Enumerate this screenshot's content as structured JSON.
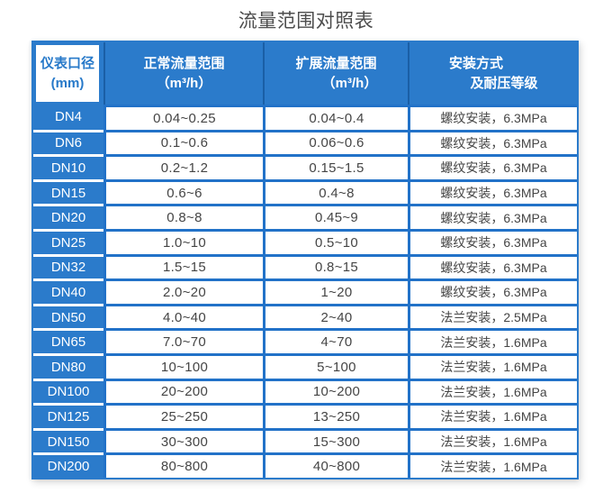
{
  "page_title": "流量范围对照表",
  "colors": {
    "primary_blue": "#2b7bcb",
    "grid_line_blue": "#2272c8",
    "header_divider_blue": "#1a5fa6",
    "header_cell1_bg": "#ffffff",
    "header_cell1_text": "#2779c9",
    "data_text": "#454545",
    "title_text": "#4d4d4d"
  },
  "headers": [
    {
      "line1": "仪表口径",
      "line2": "(mm)"
    },
    {
      "line1": "正常流量范围",
      "line2": "（m³/h）"
    },
    {
      "line1": "扩展流量范围",
      "line2": "（m³/h）"
    },
    {
      "line1": "安装方式",
      "line2": "及耐压等级"
    }
  ],
  "chart_data": {
    "type": "table",
    "title": "流量范围对照表",
    "columns": [
      "仪表口径 (mm)",
      "正常流量范围（m³/h）",
      "扩展流量范围（m³/h）",
      "安装方式及耐压等级"
    ],
    "rows": [
      [
        "DN4",
        "0.04~0.25",
        "0.04~0.4",
        "螺纹安装，6.3MPa"
      ],
      [
        "DN6",
        "0.1~0.6",
        "0.06~0.6",
        "螺纹安装，6.3MPa"
      ],
      [
        "DN10",
        "0.2~1.2",
        "0.15~1.5",
        "螺纹安装，6.3MPa"
      ],
      [
        "DN15",
        "0.6~6",
        "0.4~8",
        "螺纹安装，6.3MPa"
      ],
      [
        "DN20",
        "0.8~8",
        "0.45~9",
        "螺纹安装，6.3MPa"
      ],
      [
        "DN25",
        "1.0~10",
        "0.5~10",
        "螺纹安装，6.3MPa"
      ],
      [
        "DN32",
        "1.5~15",
        "0.8~15",
        "螺纹安装，6.3MPa"
      ],
      [
        "DN40",
        "2.0~20",
        "1~20",
        "螺纹安装，6.3MPa"
      ],
      [
        "DN50",
        "4.0~40",
        "2~40",
        "法兰安装，2.5MPa"
      ],
      [
        "DN65",
        "7.0~70",
        "4~70",
        "法兰安装，1.6MPa"
      ],
      [
        "DN80",
        "10~100",
        "5~100",
        "法兰安装，1.6MPa"
      ],
      [
        "DN100",
        "20~200",
        "10~200",
        "法兰安装，1.6MPa"
      ],
      [
        "DN125",
        "25~250",
        "13~250",
        "法兰安装，1.6MPa"
      ],
      [
        "DN150",
        "30~300",
        "15~300",
        "法兰安装，1.6MPa"
      ],
      [
        "DN200",
        "80~800",
        "40~800",
        "法兰安装，1.6MPa"
      ]
    ]
  }
}
